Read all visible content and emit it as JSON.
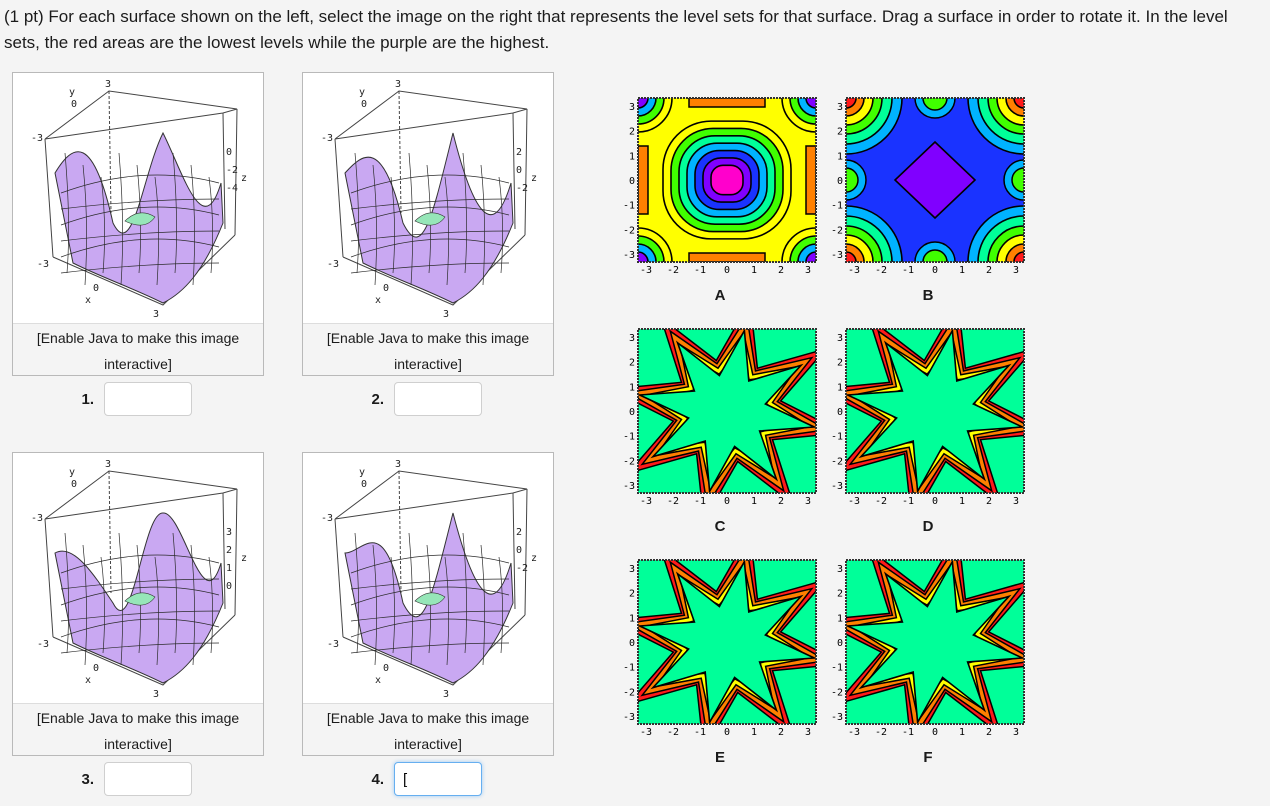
{
  "question": {
    "text": "(1 pt) For each surface shown on the left, select the image on the right that represents the level sets for that surface. Drag a surface in order to rotate it. In the level sets, the red areas are the lowest levels while the purple are the highest."
  },
  "surfaces": [
    {
      "number": "1.",
      "note_line1": "[Enable Java to make this image",
      "note_line2": "interactive]",
      "answer": "",
      "axis_labels": {
        "y": "y",
        "y0": "0",
        "top3": "3",
        "left3": "-3",
        "bottom3": "-3",
        "x0": "0",
        "x": "x",
        "x3": "3",
        "z_ticks": [
          "0",
          "-2",
          "-4"
        ],
        "z": "z"
      }
    },
    {
      "number": "2.",
      "note_line1": "[Enable Java to make this image",
      "note_line2": "interactive]",
      "answer": "",
      "axis_labels": {
        "y": "y",
        "y0": "0",
        "top3": "3",
        "left3": "-3",
        "bottom3": "-3",
        "x0": "0",
        "x": "x",
        "x3": "3",
        "z_ticks": [
          "2",
          "0",
          "-2"
        ],
        "z": "z"
      }
    },
    {
      "number": "3.",
      "note_line1": "[Enable Java to make this image",
      "note_line2": "interactive]",
      "answer": "",
      "axis_labels": {
        "y": "y",
        "y0": "0",
        "top3": "3",
        "left3": "-3",
        "bottom3": "-3",
        "x0": "0",
        "x": "x",
        "x3": "3",
        "z_ticks": [
          "3",
          "2",
          "1",
          "0"
        ],
        "z": "z"
      }
    },
    {
      "number": "4.",
      "note_line1": "[Enable Java to make this image",
      "note_line2": "interactive]",
      "answer": "[",
      "axis_labels": {
        "y": "y",
        "y0": "0",
        "top3": "3",
        "left3": "-3",
        "bottom3": "-3",
        "x0": "0",
        "x": "x",
        "x3": "3",
        "z_ticks": [
          "2",
          "0",
          "-2"
        ],
        "z": "z"
      }
    }
  ],
  "level_sets": {
    "ticks": [
      "-3",
      "-2",
      "-1",
      "0",
      "1",
      "2",
      "3"
    ],
    "panels": [
      {
        "letter": "A",
        "pattern": "radial"
      },
      {
        "letter": "B",
        "pattern": "inverted"
      },
      {
        "letter": "C",
        "pattern": "star"
      },
      {
        "letter": "D",
        "pattern": "star"
      },
      {
        "letter": "E",
        "pattern": "star"
      },
      {
        "letter": "F",
        "pattern": "star"
      }
    ]
  },
  "colors": {
    "palette": [
      "#ff1a1a",
      "#ff8000",
      "#ffff00",
      "#40ff00",
      "#00ff99",
      "#00b3ff",
      "#1a33ff",
      "#8000ff",
      "#ff00cc"
    ],
    "surface_fill": "#c9a8f2",
    "focus_border": "#66aff0"
  }
}
